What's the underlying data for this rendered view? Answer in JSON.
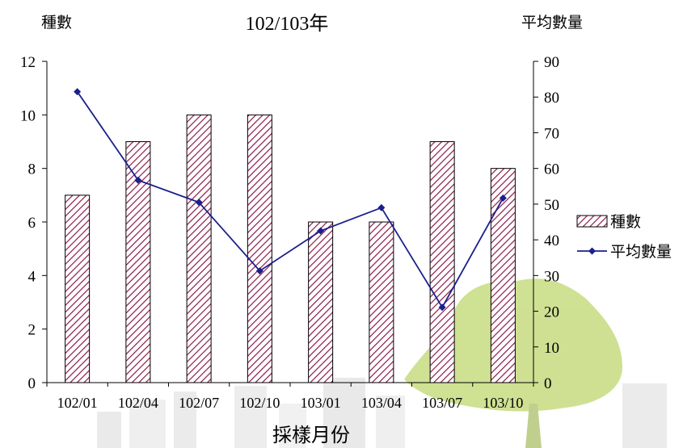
{
  "chart_data": {
    "type": "bar+line",
    "title": "102/103年",
    "categories": [
      "102/01",
      "102/04",
      "102/07",
      "102/10",
      "103/01",
      "103/04",
      "103/07",
      "103/10"
    ],
    "xlabel": "採樣月份",
    "ylabel_left": "種數",
    "ylabel_right": "平均數量",
    "y_left_lim": [
      0,
      12
    ],
    "y_left_ticks": [
      0,
      2,
      4,
      6,
      8,
      10,
      12
    ],
    "y_right_lim": [
      0,
      90
    ],
    "y_right_ticks": [
      0,
      10,
      20,
      30,
      40,
      50,
      60,
      70,
      80,
      90
    ],
    "series": [
      {
        "name": "種數",
        "type": "bar",
        "axis": "left",
        "values": [
          7,
          9,
          10,
          10,
          6,
          6,
          9,
          8
        ]
      },
      {
        "name": "平均數量",
        "type": "line",
        "axis": "right",
        "values": [
          81.5,
          56.7,
          50.5,
          31.3,
          42.5,
          49.0,
          21.1,
          51.7
        ]
      }
    ],
    "legend_position": "right",
    "grid": false,
    "colors": {
      "bar_hatch": "#8b1a4a",
      "line": "#1a1f8c",
      "tree": "#a8c83a"
    }
  }
}
